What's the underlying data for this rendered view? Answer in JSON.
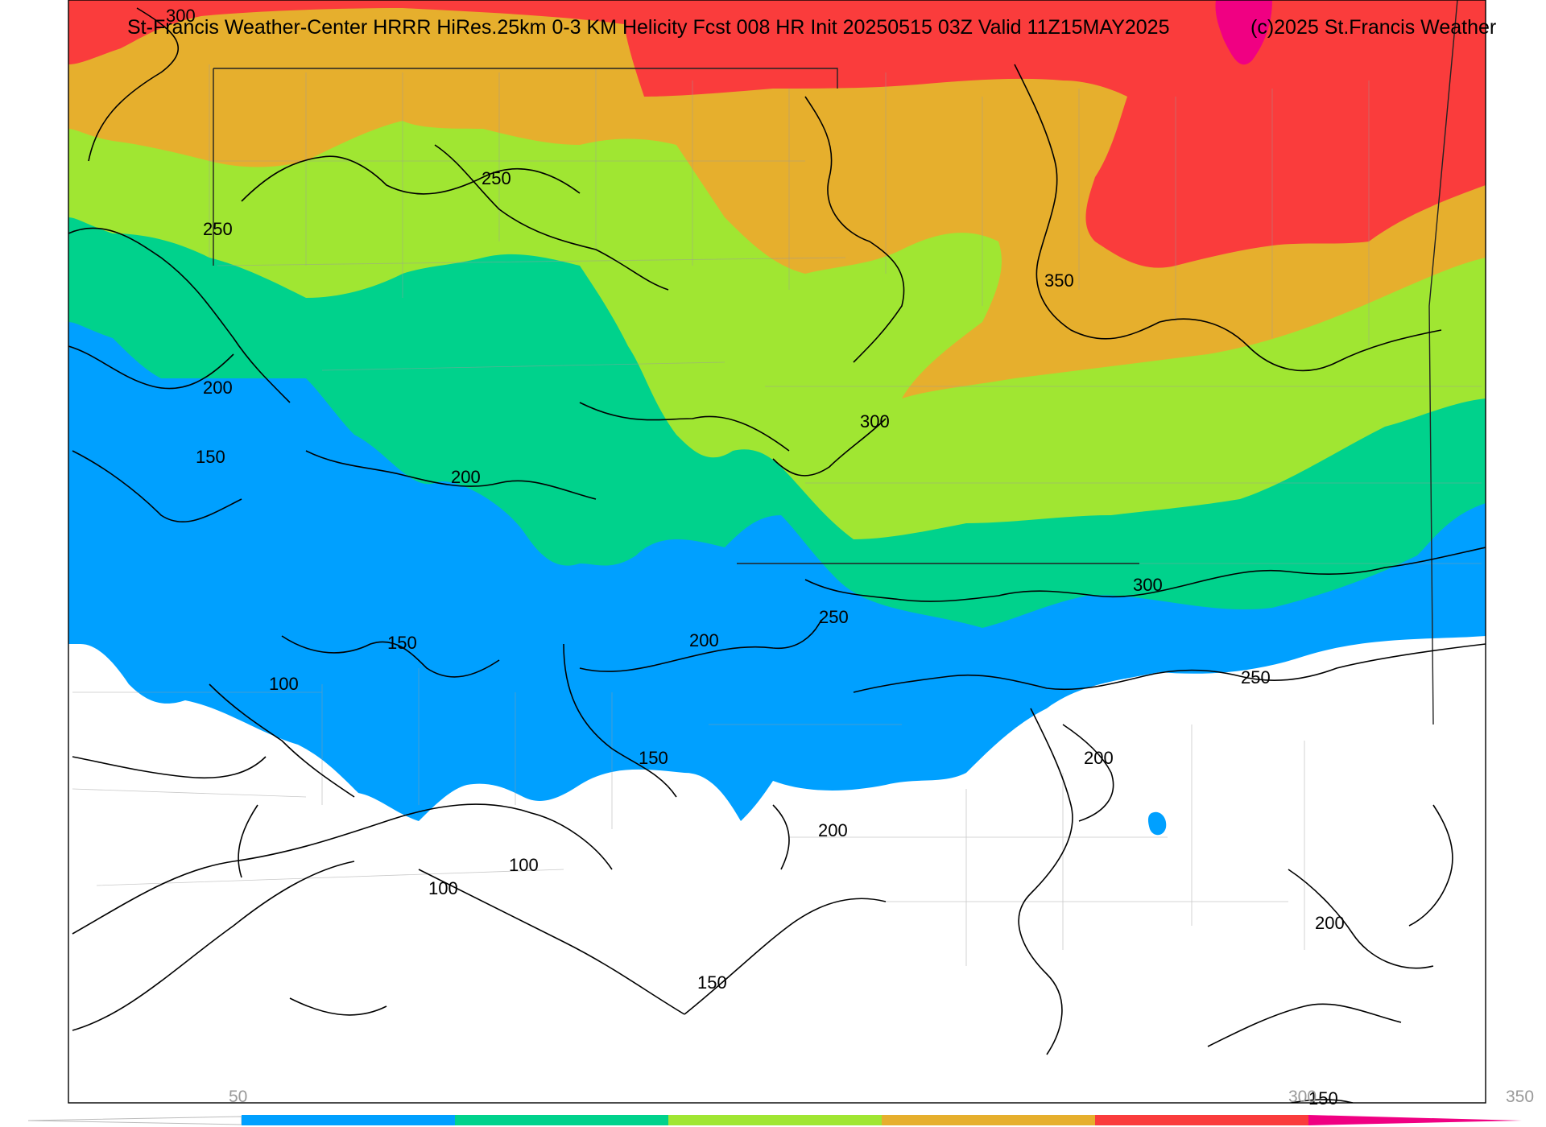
{
  "title": "St-Francis Weather-Center HRRR HiRes.25km 0-3 KM Helicity Fcst 008 HR Init 20250515 03Z  Valid 11Z15MAY2025",
  "credit": "(c)2025 St.Francis Weather",
  "colorbar": {
    "ticks": [
      "50",
      "300",
      "350"
    ],
    "colors": [
      "#00a0ff",
      "#00d28c",
      "#a0e632",
      "#e6af2d",
      "#fa3c3c",
      "#f00082"
    ]
  },
  "contour_labels": [
    "300",
    "250",
    "250",
    "350",
    "200",
    "150",
    "200",
    "300",
    "300",
    "250",
    "150",
    "200",
    "250",
    "100",
    "150",
    "200",
    "200",
    "100",
    "100",
    "150",
    "200",
    "150"
  ],
  "fill_colors": {
    "white": "#ffffff",
    "blue": "#00a0ff",
    "teal": "#00d28c",
    "lime": "#a0e632",
    "orange": "#e6af2d",
    "red": "#fa3c3c",
    "magenta": "#f00082"
  }
}
